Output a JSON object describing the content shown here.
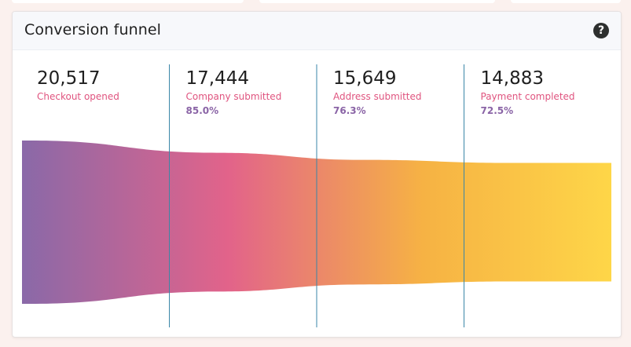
{
  "card": {
    "title": "Conversion funnel",
    "help_icon": "question-mark-icon"
  },
  "colors": {
    "gradient_start": "#8a69a8",
    "gradient_mid": "#e2638a",
    "gradient_orange": "#f6b244",
    "gradient_end": "#fed648",
    "divider": "#3a86a8",
    "label_pink": "#e0547f",
    "rate_purple": "#8a64a6"
  },
  "chart_data": {
    "type": "funnel",
    "title": "Conversion funnel",
    "categories": [
      "Checkout opened",
      "Company submitted",
      "Address submitted",
      "Payment completed"
    ],
    "values": [
      20517,
      17444,
      15649,
      14883
    ],
    "value_labels": [
      "20,517",
      "17,444",
      "15,649",
      "14,883"
    ],
    "conversion_rates": [
      "",
      "85.0%",
      "76.3%",
      "72.5%"
    ]
  }
}
